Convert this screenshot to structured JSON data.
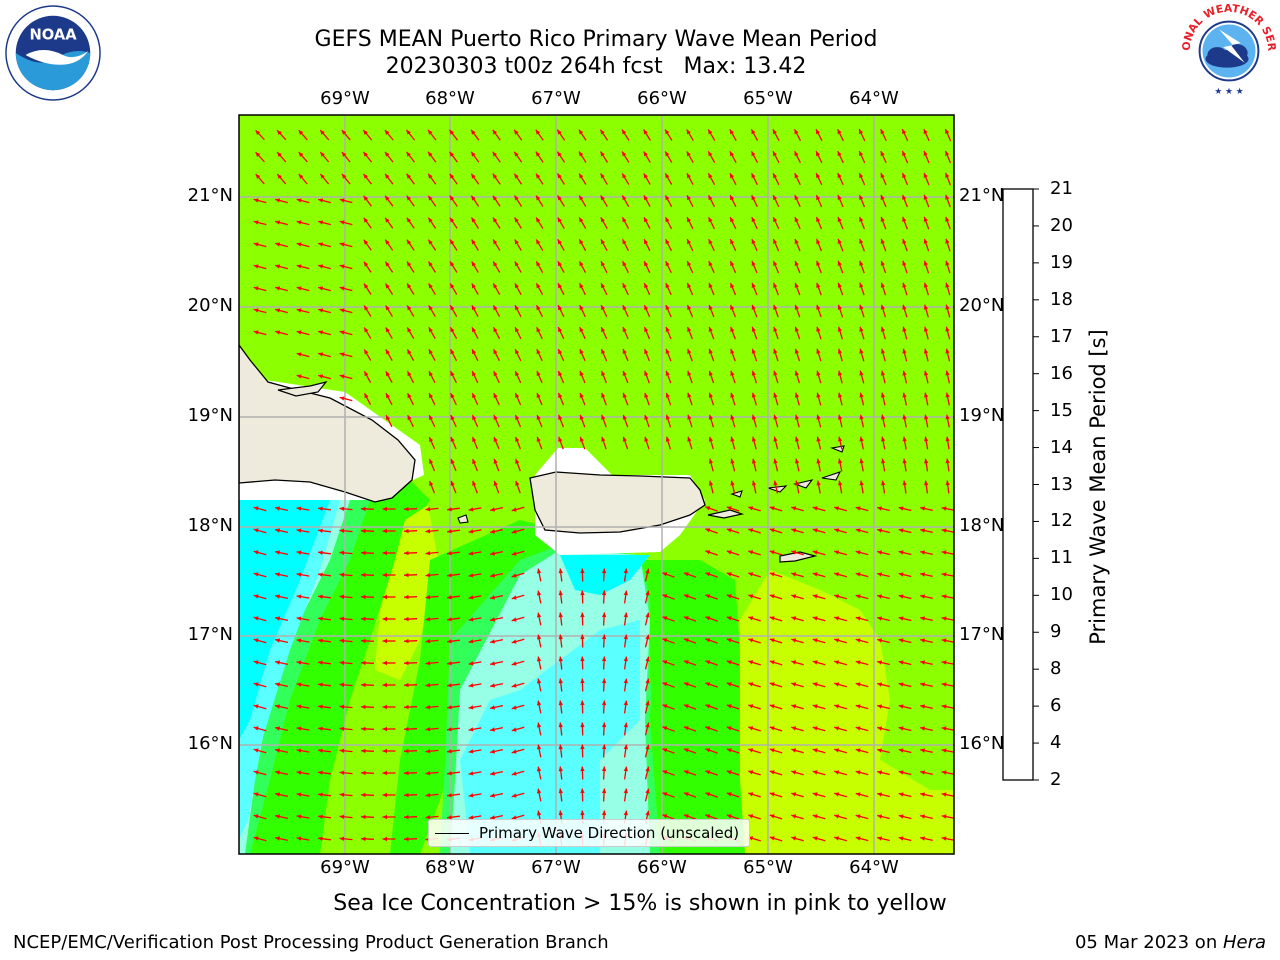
{
  "header": {
    "title_line1": "GEFS MEAN Puerto Rico Primary Wave Mean Period",
    "title_line2": "20230303 t00z 264h fcst   Max: 13.42"
  },
  "logos": {
    "left": {
      "icon": "noaa-logo",
      "text": "NOAA",
      "ring_text": "NATIONAL OCEANIC AND ATMOSPHERIC ADMINISTRATION · U.S. DEPARTMENT OF COMMERCE"
    },
    "right": {
      "icon": "nws-logo",
      "ring_text": "NATIONAL WEATHER SERVICE"
    }
  },
  "map": {
    "lon_labels": [
      "69°W",
      "68°W",
      "67°W",
      "66°W",
      "65°W",
      "64°W"
    ],
    "lat_labels": [
      "21°N",
      "20°N",
      "19°N",
      "18°N",
      "17°N",
      "16°N"
    ],
    "land_color": "#efebdc",
    "arrow_color": "#ff0000",
    "grid_color": "#b0b0b0",
    "legend_label": "Primary Wave Direction (unscaled)"
  },
  "colorbar": {
    "title": "Primary Wave Mean Period [s]",
    "tick_labels": [
      "2",
      "4",
      "6",
      "8",
      "9",
      "10",
      "11",
      "12",
      "13",
      "14",
      "15",
      "16",
      "17",
      "18",
      "19",
      "20",
      "21"
    ],
    "colors": [
      "#0000ff",
      "#0a78ff",
      "#00ffff",
      "#5affff",
      "#96ffe6",
      "#32ff5a",
      "#32ff00",
      "#8cff00",
      "#c8ff00",
      "#e6ff00",
      "#ffff00",
      "#ffc800",
      "#ff9600",
      "#ff6400",
      "#ff3200",
      "#ff0000"
    ]
  },
  "footer": {
    "caption": "Sea Ice Concentration > 15% is shown in pink to yellow",
    "left": "NCEP/EMC/Verification Post Processing Product Generation Branch",
    "right_date": "05 Mar 2023 on ",
    "right_host": "Hera"
  }
}
